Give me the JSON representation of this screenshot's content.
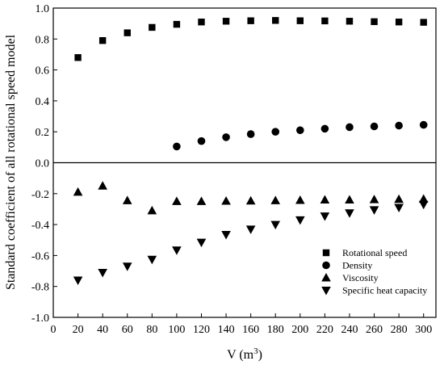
{
  "chart_data": {
    "type": "scatter",
    "title": "",
    "xlabel": "V (m",
    "xlabel_sup": "3",
    "xlabel_tail": ")",
    "ylabel": "Standard coefficient of all rotational speed model",
    "xlim": [
      0,
      310
    ],
    "ylim": [
      -1.0,
      1.0
    ],
    "xticks": [
      "0",
      "20",
      "40",
      "60",
      "80",
      "100",
      "120",
      "140",
      "160",
      "180",
      "200",
      "220",
      "240",
      "260",
      "280",
      "300"
    ],
    "yticks": [
      "-1.0",
      "-0.8",
      "-0.6",
      "-0.4",
      "-0.2",
      "0.0",
      "0.2",
      "0.4",
      "0.6",
      "0.8",
      "1.0"
    ],
    "zero_line": true,
    "grid": false,
    "legend_position": "bottom-right",
    "series": [
      {
        "name": "Rotational speed",
        "marker": "square",
        "x": [
          20,
          40,
          60,
          80,
          100,
          120,
          140,
          160,
          180,
          200,
          220,
          240,
          260,
          280,
          300
        ],
        "y": [
          0.68,
          0.79,
          0.84,
          0.875,
          0.895,
          0.91,
          0.915,
          0.918,
          0.92,
          0.918,
          0.917,
          0.915,
          0.912,
          0.91,
          0.908
        ]
      },
      {
        "name": "Density",
        "marker": "circle",
        "x": [
          100,
          120,
          140,
          160,
          180,
          200,
          220,
          240,
          260,
          280,
          300
        ],
        "y": [
          0.105,
          0.14,
          0.165,
          0.185,
          0.2,
          0.21,
          0.22,
          0.23,
          0.235,
          0.24,
          0.245
        ]
      },
      {
        "name": "Viscosity",
        "marker": "triangle-up",
        "x": [
          20,
          40,
          60,
          80,
          100,
          120,
          140,
          160,
          180,
          200,
          220,
          240,
          260,
          280,
          300
        ],
        "y": [
          -0.19,
          -0.15,
          -0.245,
          -0.31,
          -0.25,
          -0.25,
          -0.248,
          -0.247,
          -0.245,
          -0.243,
          -0.24,
          -0.24,
          -0.238,
          -0.236,
          -0.235
        ]
      },
      {
        "name": "Specific heat capacity",
        "marker": "triangle-down",
        "x": [
          20,
          40,
          60,
          80,
          100,
          120,
          140,
          160,
          180,
          200,
          220,
          240,
          260,
          280,
          300
        ],
        "y": [
          -0.76,
          -0.71,
          -0.67,
          -0.625,
          -0.565,
          -0.515,
          -0.465,
          -0.43,
          -0.4,
          -0.37,
          -0.345,
          -0.325,
          -0.305,
          -0.29,
          -0.27
        ]
      }
    ]
  }
}
